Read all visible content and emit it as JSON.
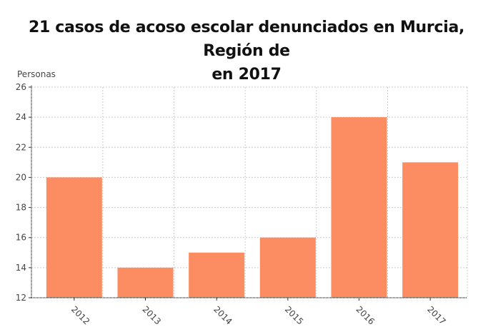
{
  "title": "21 casos de acoso escolar denunciados en Murcia, Región de en 2017",
  "title_lines": [
    "21 casos de acoso escolar denunciados en Murcia, Región de",
    "en 2017"
  ],
  "colors": {
    "bar": "#fc8d62",
    "grid": "#cccccc",
    "axis": "#333333"
  },
  "chart_data": {
    "type": "bar",
    "title": "21 casos de acoso escolar denunciados en Murcia, Región de en 2017",
    "xlabel": "",
    "ylabel": "Personas",
    "categories": [
      "2012",
      "2013",
      "2014",
      "2015",
      "2016",
      "2017"
    ],
    "values": [
      20,
      14,
      15,
      16,
      24,
      21
    ],
    "ylim": [
      12,
      26
    ],
    "yticks": [
      12,
      14,
      16,
      18,
      20,
      22,
      24,
      26
    ],
    "grid": true,
    "legend": null
  }
}
